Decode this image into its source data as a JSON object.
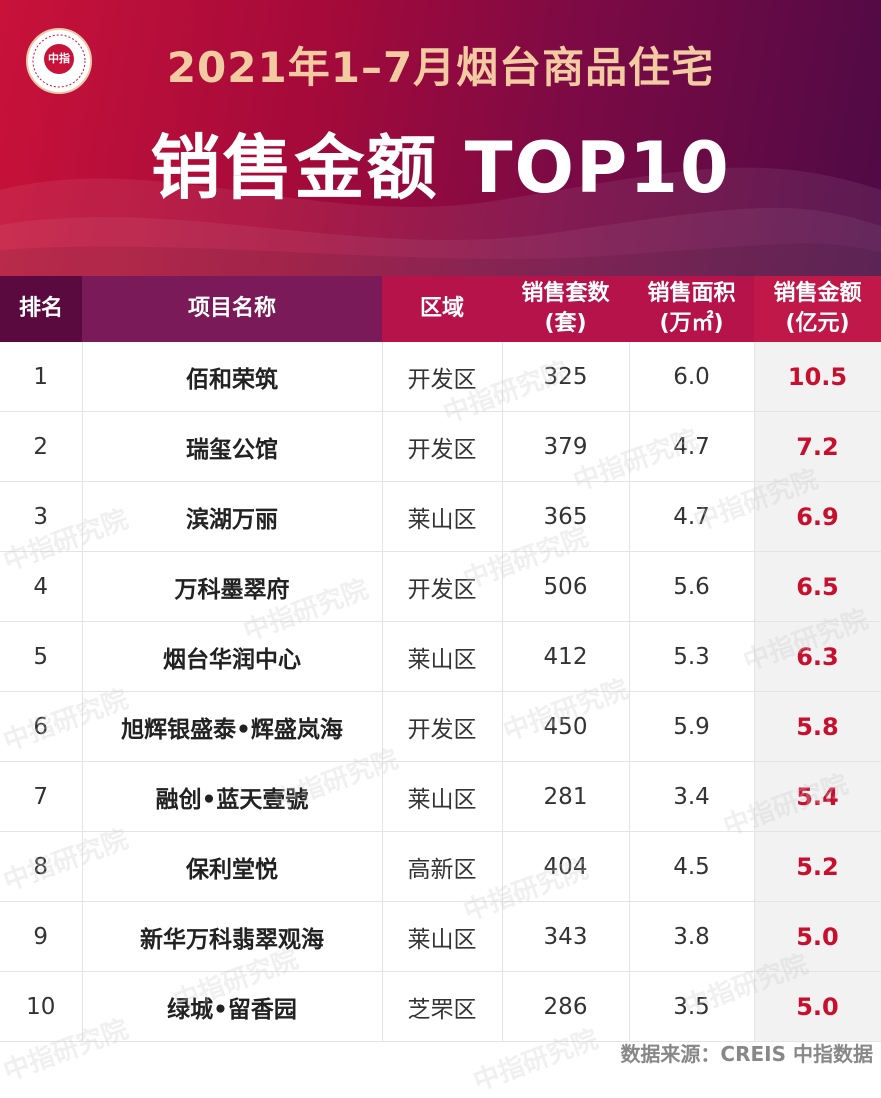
{
  "header": {
    "title_line1": "2021年1–7月烟台商品住宅",
    "title_line2": "销售金额 TOP10",
    "logo_text": "中指"
  },
  "table": {
    "columns": [
      "排名",
      "项目名称",
      "区域",
      "销售套数\n(套)",
      "销售面积\n(万㎡)",
      "销售金额\n(亿元)"
    ],
    "rows": [
      {
        "rank": "1",
        "name": "佰和荣筑",
        "district": "开发区",
        "units": "325",
        "area": "6.0",
        "amount": "10.5"
      },
      {
        "rank": "2",
        "name": "瑞玺公馆",
        "district": "开发区",
        "units": "379",
        "area": "4.7",
        "amount": "7.2"
      },
      {
        "rank": "3",
        "name": "滨湖万丽",
        "district": "莱山区",
        "units": "365",
        "area": "4.7",
        "amount": "6.9"
      },
      {
        "rank": "4",
        "name": "万科墨翠府",
        "district": "开发区",
        "units": "506",
        "area": "5.6",
        "amount": "6.5"
      },
      {
        "rank": "5",
        "name": "烟台华润中心",
        "district": "莱山区",
        "units": "412",
        "area": "5.3",
        "amount": "6.3"
      },
      {
        "rank": "6",
        "name": "旭辉银盛泰•辉盛岚海",
        "district": "开发区",
        "units": "450",
        "area": "5.9",
        "amount": "5.8"
      },
      {
        "rank": "7",
        "name": "融创•蓝天壹號",
        "district": "莱山区",
        "units": "281",
        "area": "3.4",
        "amount": "5.4"
      },
      {
        "rank": "8",
        "name": "保利堂悦",
        "district": "高新区",
        "units": "404",
        "area": "4.5",
        "amount": "5.2"
      },
      {
        "rank": "9",
        "name": "新华万科翡翠观海",
        "district": "莱山区",
        "units": "343",
        "area": "3.8",
        "amount": "5.0"
      },
      {
        "rank": "10",
        "name": "绿城•留香园",
        "district": "芝罘区",
        "units": "286",
        "area": "3.5",
        "amount": "5.0"
      }
    ]
  },
  "footer": {
    "source": "数据来源：CREIS 中指数据"
  },
  "watermark": "中指研究院",
  "colors": {
    "banner_start": "#c8123a",
    "banner_end": "#4e0a45",
    "title_gold": "#f3cba2",
    "amount_red": "#c8102e"
  }
}
